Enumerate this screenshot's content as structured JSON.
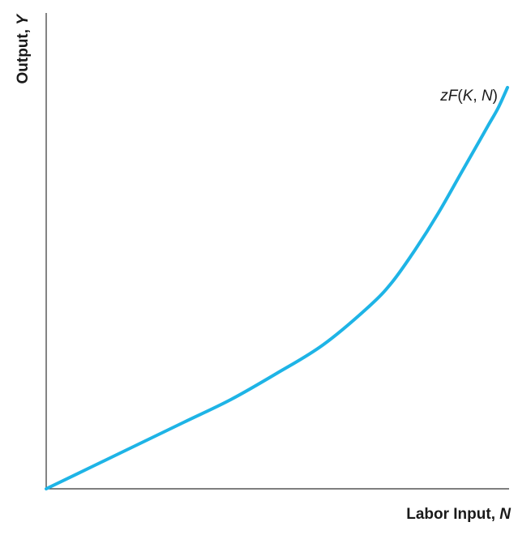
{
  "chart_data": {
    "type": "line",
    "title": "",
    "xlabel": "Labor Input, N",
    "xlabel_text": "Labor Input, ",
    "xlabel_var": "N",
    "ylabel": "Output, Y",
    "ylabel_text": "Output, ",
    "ylabel_var": "Y",
    "xlim": [
      0,
      1
    ],
    "ylim": [
      0,
      1
    ],
    "ticks": "none",
    "grid": false,
    "colors": {
      "curve": "#1eb4e6",
      "axes": "#333333"
    },
    "series": [
      {
        "name": "zF(K, N)",
        "name_parts": {
          "z": "z",
          "F": "F",
          "open": "(",
          "K": "K",
          "comma": ", ",
          "N": "N",
          "close": ")"
        },
        "x": [
          0,
          0.1,
          0.2,
          0.3,
          0.4,
          0.5,
          0.6,
          0.7,
          0.75,
          0.8,
          0.85,
          0.9,
          0.93,
          0.96,
          0.98,
          1.0
        ],
        "y": [
          0,
          0.055,
          0.11,
          0.165,
          0.22,
          0.285,
          0.355,
          0.45,
          0.51,
          0.59,
          0.68,
          0.78,
          0.84,
          0.9,
          0.94,
          0.99
        ]
      }
    ]
  }
}
